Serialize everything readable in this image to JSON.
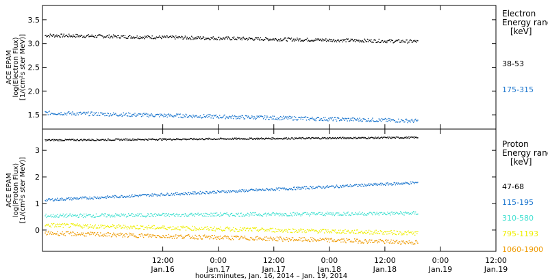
{
  "chart_data": [
    {
      "type": "scatter",
      "ylabel_lines": [
        "ACE EPAM",
        "log(Electron Flux)",
        "[1/(cm²s ster MeV)]"
      ],
      "ylim": [
        1.2,
        3.8
      ],
      "yticks": [
        1.5,
        2.0,
        2.5,
        3.0,
        3.5
      ],
      "ytick_labels": [
        "1.5",
        "2.0",
        "2.5",
        "3.0",
        "3.5"
      ],
      "legend_title_lines": [
        "Electron",
        "Energy range",
        "[keV]"
      ],
      "series": [
        {
          "name": "38-53",
          "color": "#000000",
          "start": 3.18,
          "end": 3.05,
          "noise": 0.035
        },
        {
          "name": "175-315",
          "color": "#1874cd",
          "start": 1.55,
          "end": 1.38,
          "noise": 0.04
        }
      ]
    },
    {
      "type": "scatter",
      "ylabel_lines": [
        "ACE EPAM",
        "log(Proton Flux)",
        "[1/(cm²s ster MeV)]"
      ],
      "ylim": [
        -0.8,
        3.8
      ],
      "yticks": [
        0,
        1,
        2,
        3
      ],
      "ytick_labels": [
        "0",
        "1",
        "2",
        "3"
      ],
      "legend_title_lines": [
        "Proton",
        "Energy range",
        "[keV]"
      ],
      "series": [
        {
          "name": "47-68",
          "color": "#000000",
          "start": 3.4,
          "end": 3.5,
          "noise": 0.03
        },
        {
          "name": "115-195",
          "color": "#1874cd",
          "start": 1.15,
          "end": 1.8,
          "noise": 0.05
        },
        {
          "name": "310-580",
          "color": "#40e0d0",
          "start": 0.55,
          "end": 0.65,
          "noise": 0.07
        },
        {
          "name": "795-1193",
          "color": "#eeee00",
          "start": 0.2,
          "end": -0.1,
          "noise": 0.08
        },
        {
          "name": "1060-1900",
          "color": "#ee9a00",
          "start": -0.1,
          "end": -0.45,
          "noise": 0.08
        }
      ]
    }
  ],
  "x_axis": {
    "range_hours": [
      -14,
      84
    ],
    "data_end_hours": 67,
    "tick_hours": [
      12,
      24,
      36,
      48,
      60,
      72,
      84
    ],
    "tick_labels_time": [
      "12:00",
      "0:00",
      "12:00",
      "0:00",
      "12:00",
      "0:00",
      "12:00"
    ],
    "tick_labels_date": [
      "Jan.16",
      "Jan.17",
      "Jan.17",
      "Jan.18",
      "Jan.18",
      "Jan.19",
      "Jan.19"
    ],
    "xlabel": "hours:minutes, Jan. 16, 2014 – Jan. 19, 2014"
  }
}
